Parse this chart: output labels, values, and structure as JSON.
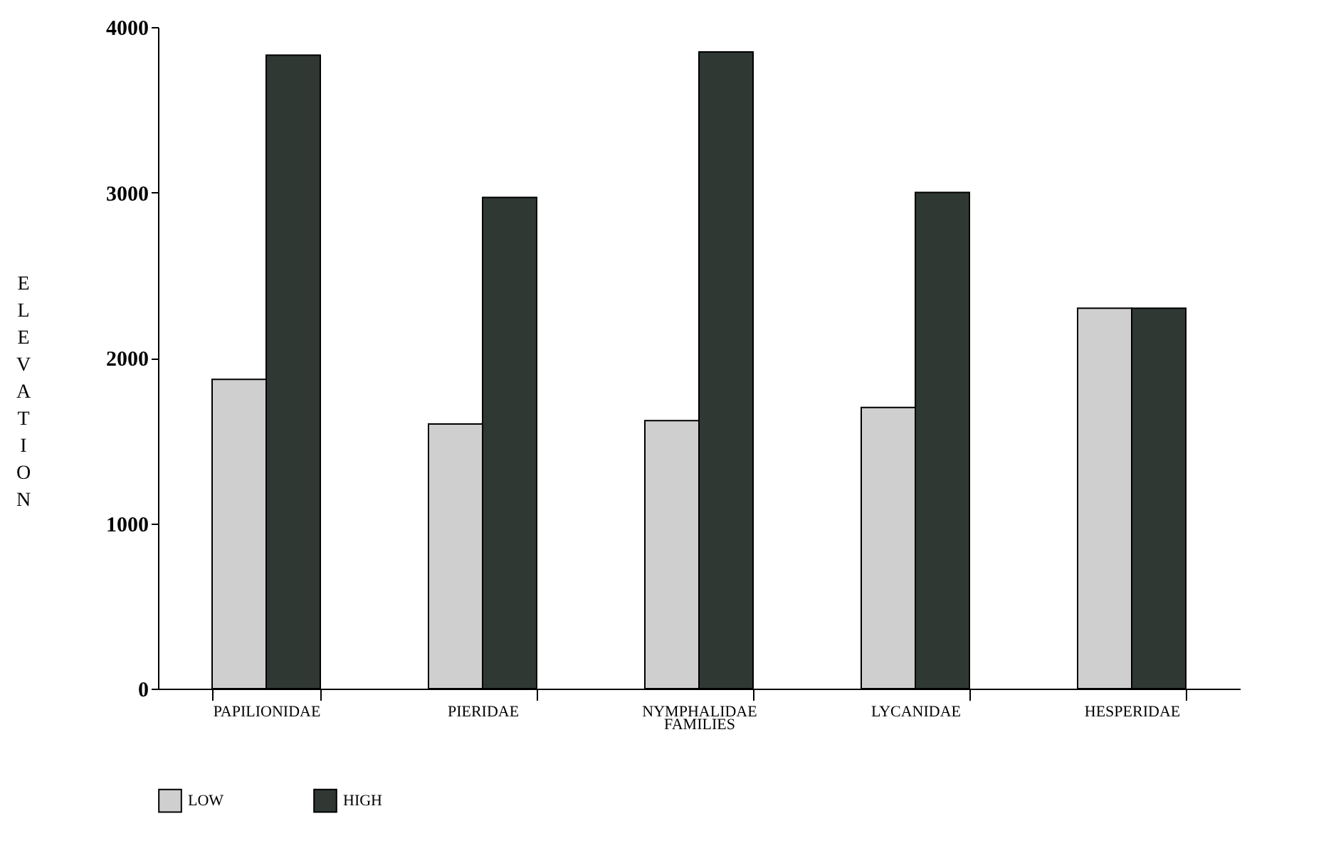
{
  "chart_data": {
    "type": "bar",
    "xlabel": "FAMILIES",
    "ylabel": "ELEVATION",
    "categories": [
      "PAPILIONIDAE",
      "PIERIDAE",
      "NYMPHALIDAE",
      "LYCANIDAE",
      "HESPERIDAE"
    ],
    "series": [
      {
        "name": "LOW",
        "color": "#cfcfcf",
        "values": [
          1870,
          1600,
          1620,
          1700,
          2300
        ]
      },
      {
        "name": "HIGH",
        "color": "#2f3833",
        "values": [
          3830,
          2970,
          3850,
          3000,
          2300
        ]
      }
    ],
    "ylim": [
      0,
      4000
    ],
    "yticks": [
      0,
      1000,
      2000,
      3000,
      4000
    ],
    "grid": false,
    "legend": "bottom"
  }
}
